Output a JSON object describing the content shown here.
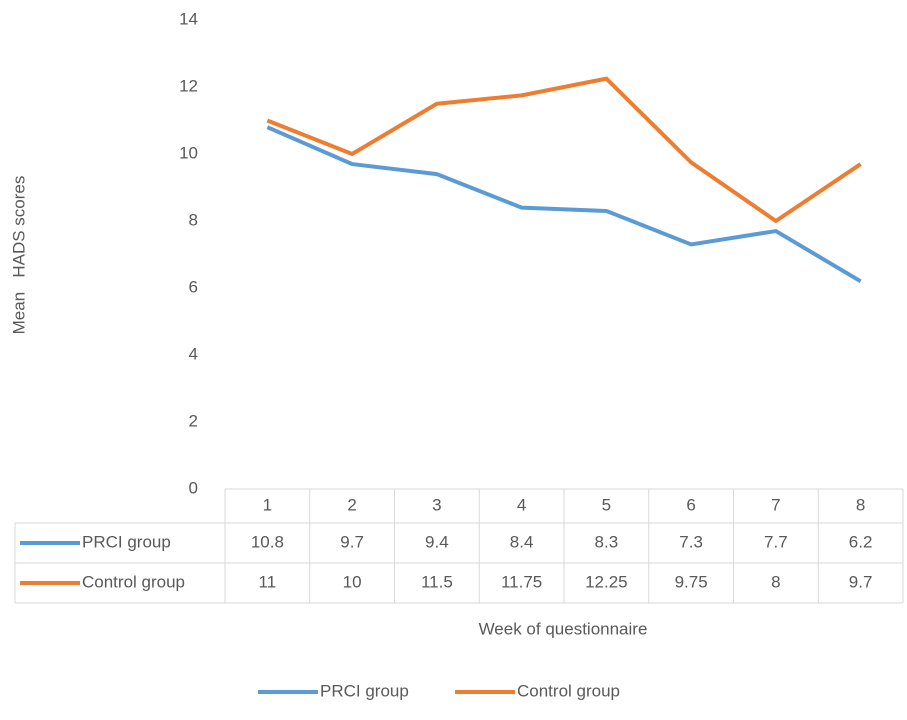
{
  "chart_data": {
    "type": "line",
    "y_label": "Mean   HADS scores",
    "x_label": "Week of questionnaire",
    "categories": [
      "1",
      "2",
      "3",
      "4",
      "5",
      "6",
      "7",
      "8"
    ],
    "series": [
      {
        "name": "PRCI group",
        "color": "#5b9bd5",
        "values": [
          10.8,
          9.7,
          9.4,
          8.4,
          8.3,
          7.3,
          7.7,
          6.2
        ]
      },
      {
        "name": "Control group",
        "color": "#ed7d31",
        "values": [
          11,
          10,
          11.5,
          11.75,
          12.25,
          9.75,
          8,
          9.7
        ]
      }
    ],
    "ylim": [
      0,
      14
    ],
    "yticks": [
      0,
      2,
      4,
      6,
      8,
      10,
      12,
      14
    ],
    "grid": false,
    "legend": "bottom"
  }
}
